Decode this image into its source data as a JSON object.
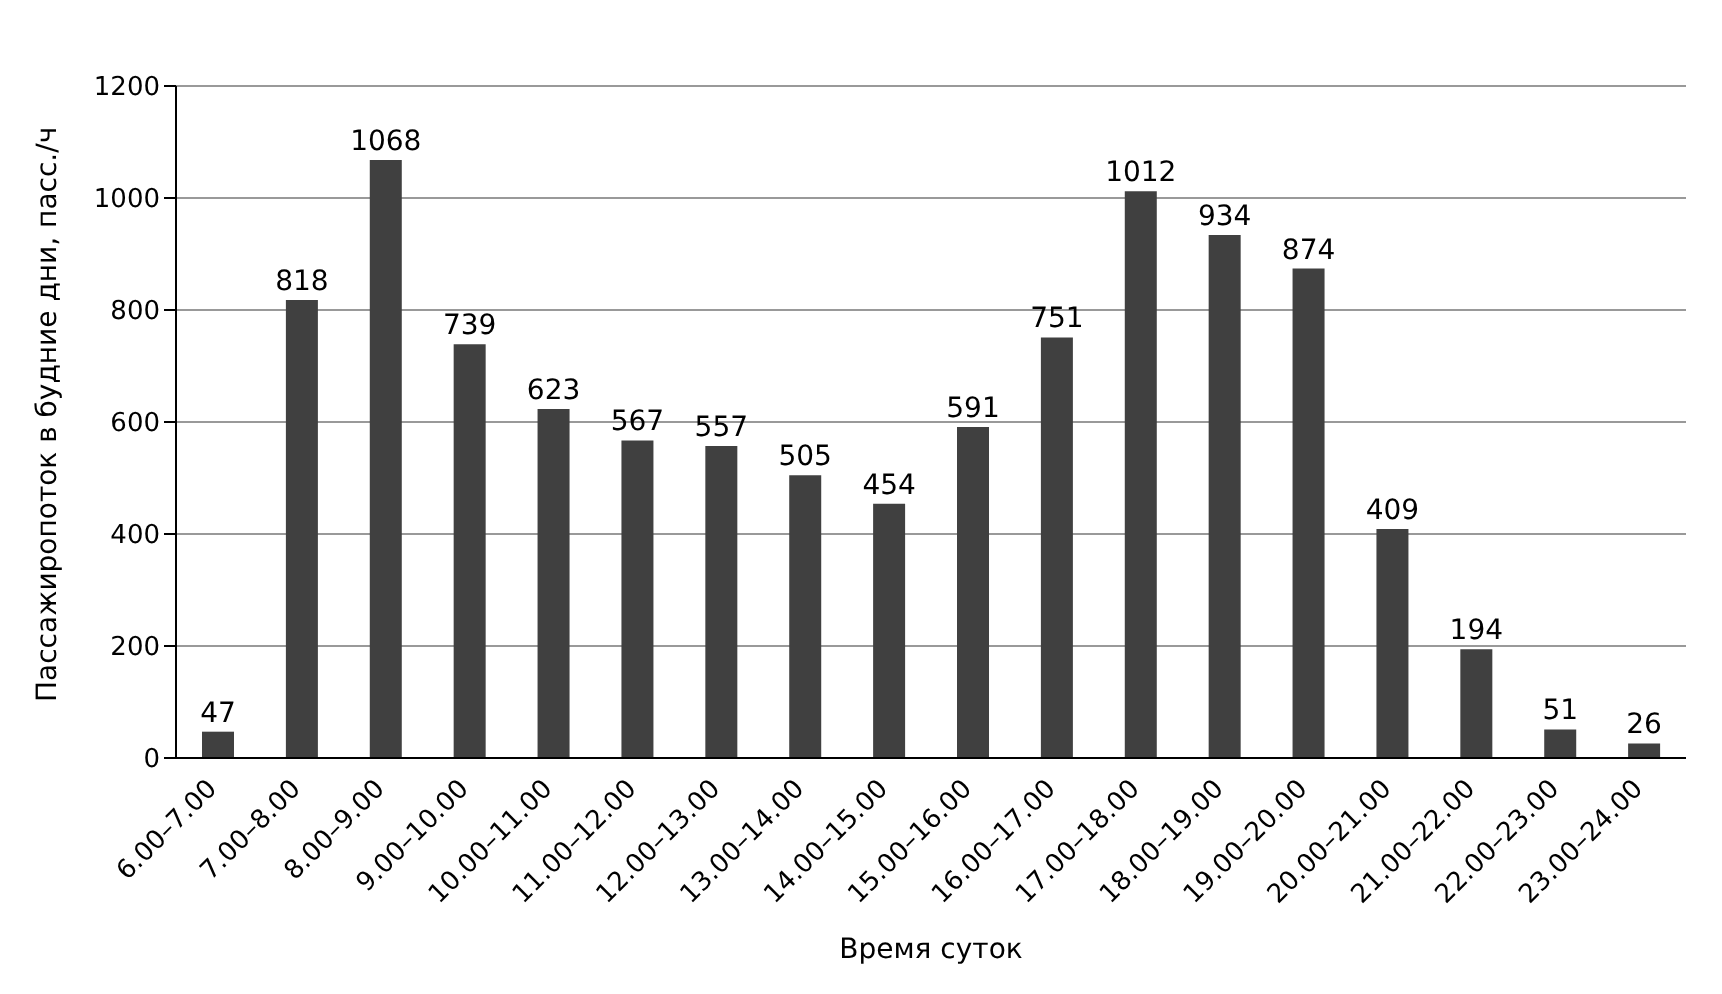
{
  "chart_data": {
    "type": "bar",
    "xlabel": "Время суток",
    "ylabel": "Пассажиропоток в будние дни, пасс./ч",
    "categories": [
      "6.00–7.00",
      "7.00–8.00",
      "8.00–9.00",
      "9.00–10.00",
      "10.00–11.00",
      "11.00–12.00",
      "12.00–13.00",
      "13.00–14.00",
      "14.00–15.00",
      "15.00–16.00",
      "16.00–17.00",
      "17.00–18.00",
      "18.00–19.00",
      "19.00–20.00",
      "20.00–21.00",
      "21.00–22.00",
      "22.00–23.00",
      "23.00–24.00"
    ],
    "values": [
      47,
      818,
      1068,
      739,
      623,
      567,
      557,
      505,
      454,
      591,
      751,
      1012,
      934,
      874,
      409,
      194,
      51,
      26
    ],
    "color": "#404040",
    "ylim": [
      0,
      1200
    ],
    "yticks": [
      0,
      200,
      400,
      600,
      800,
      1000,
      1200
    ],
    "grid": "y",
    "data_labels": true
  }
}
